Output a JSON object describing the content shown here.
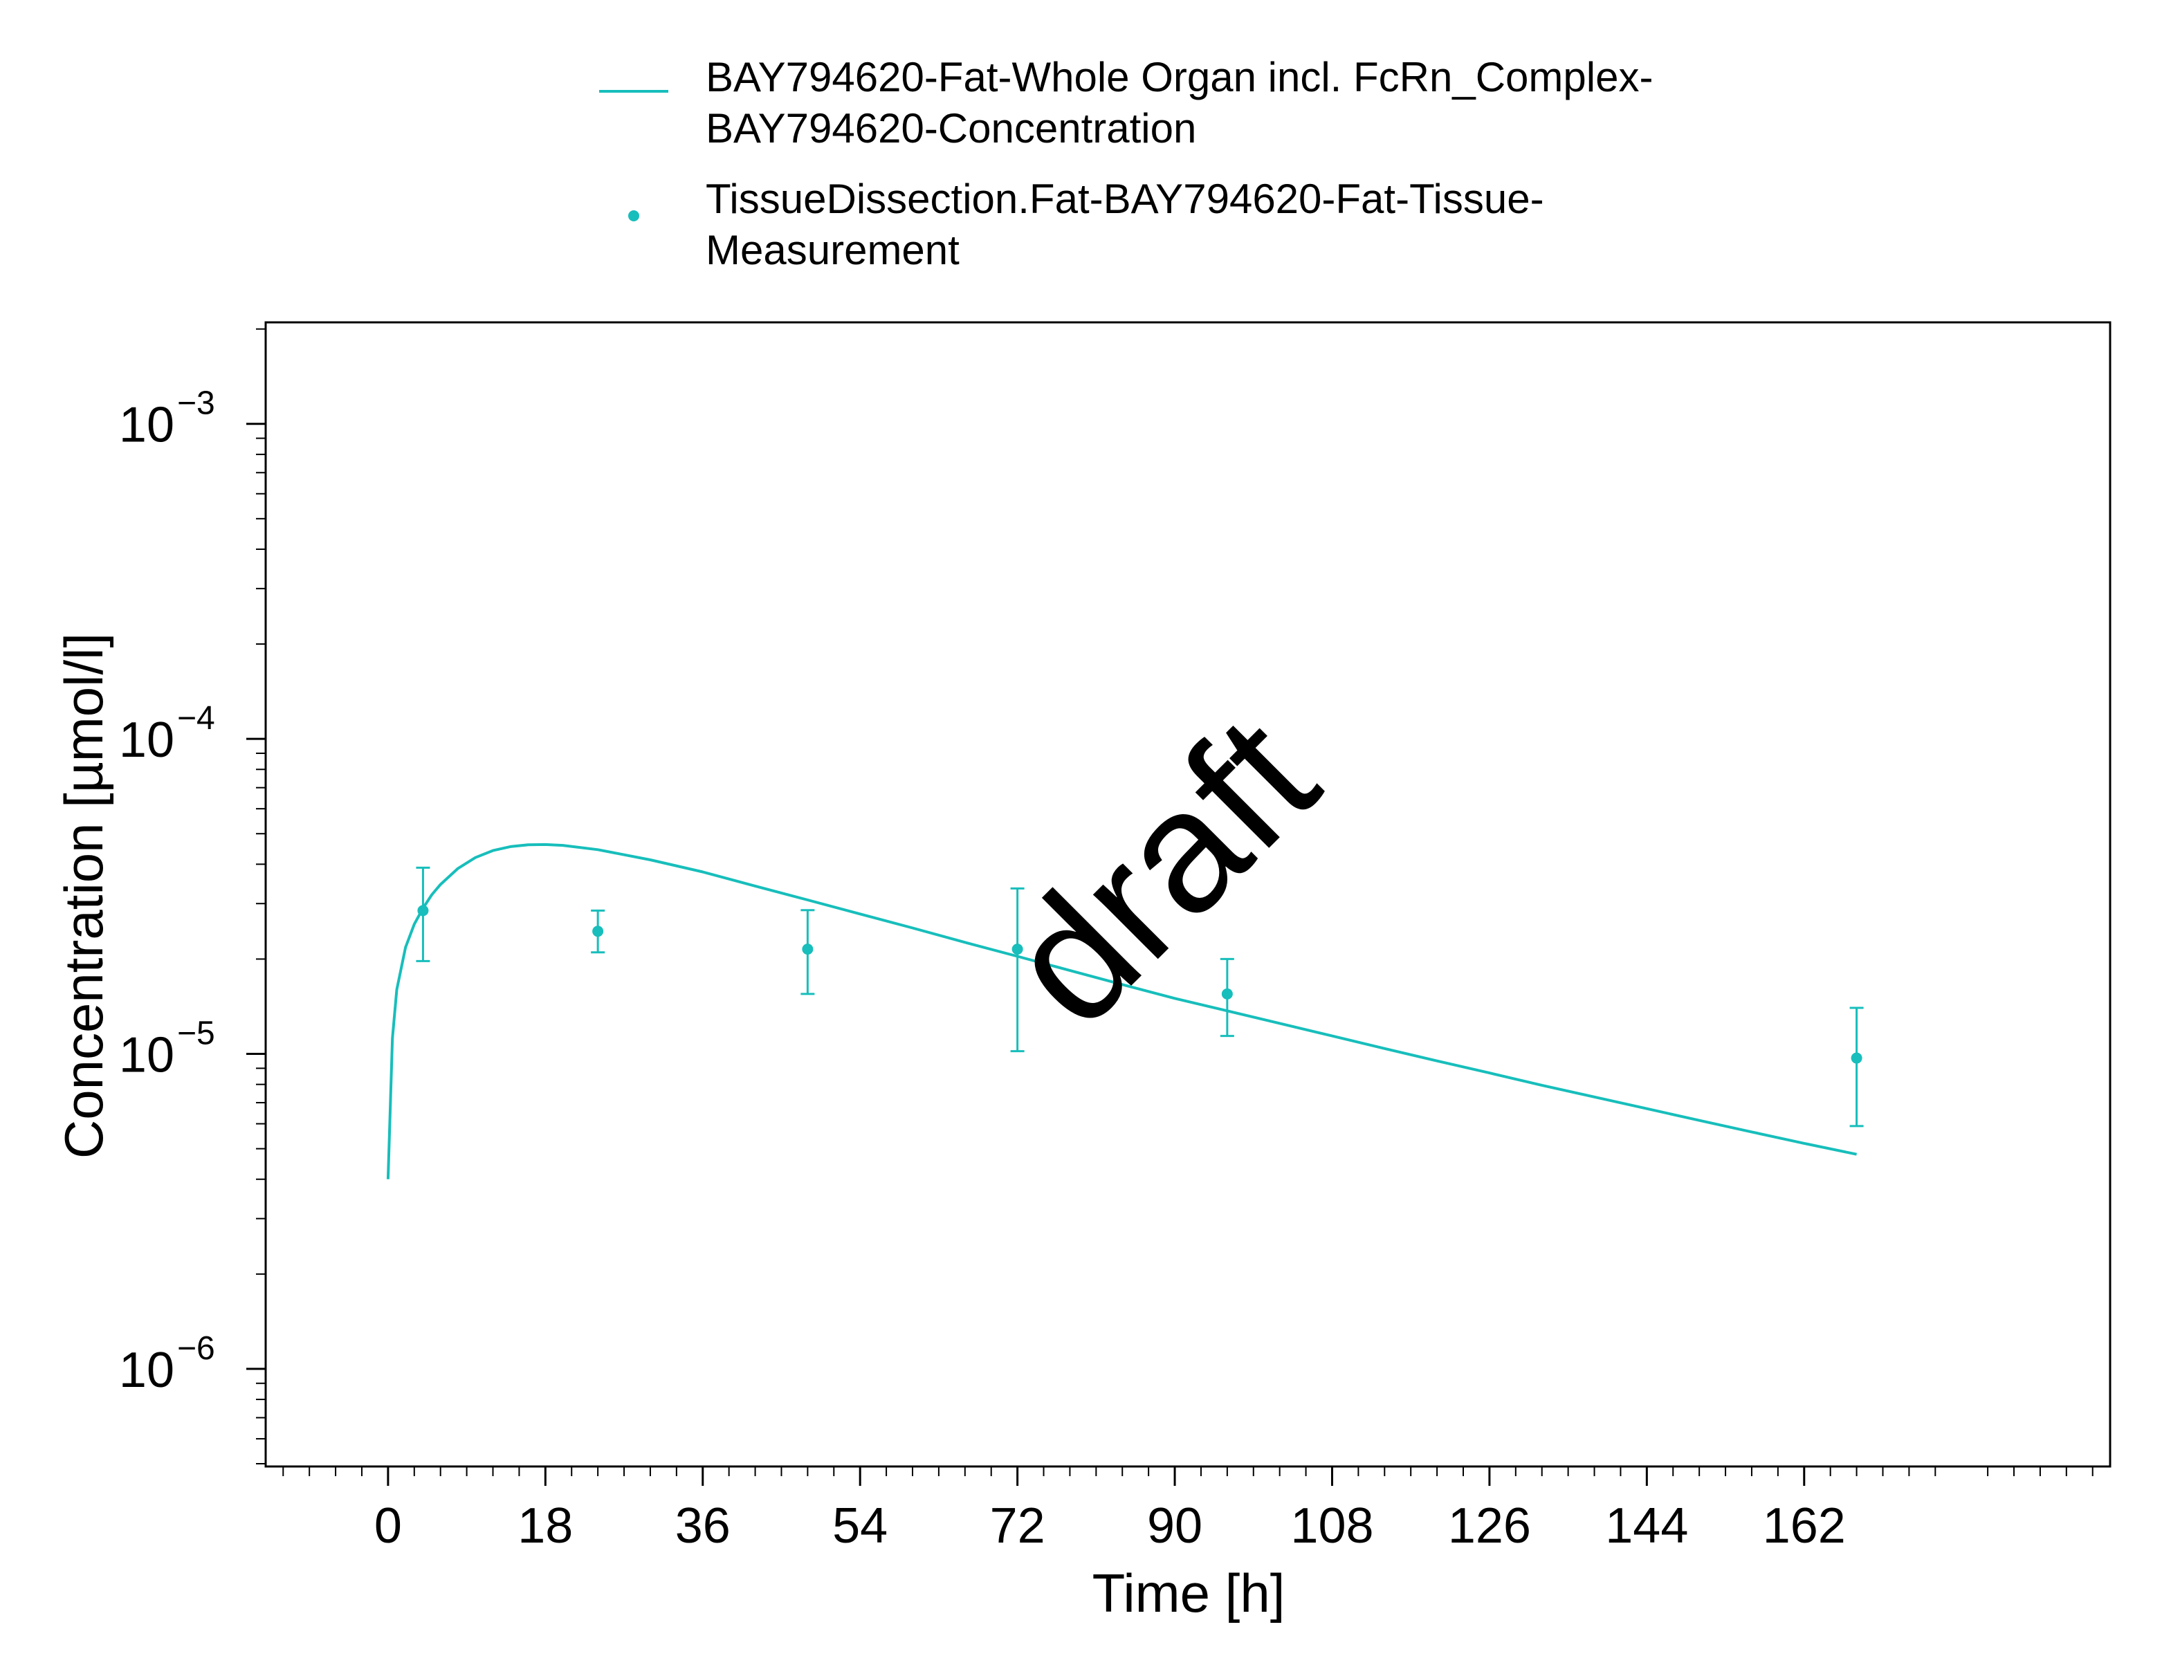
{
  "chart_data": {
    "type": "line",
    "xlabel": "Time [h]",
    "ylabel": "Concentration [µmol/l]",
    "x_scale": "linear",
    "y_scale": "log",
    "xlim": [
      -14,
      197
    ],
    "ylim": [
      4.9e-07,
      0.0021
    ],
    "x_ticks": [
      0,
      18,
      36,
      54,
      72,
      90,
      108,
      126,
      144,
      162
    ],
    "y_ticks": [
      1e-06,
      1e-05,
      0.0001,
      0.001
    ],
    "y_tick_labels": [
      {
        "base": "10",
        "exp": "−6"
      },
      {
        "base": "10",
        "exp": "−5"
      },
      {
        "base": "10",
        "exp": "−4"
      },
      {
        "base": "10",
        "exp": "−3"
      }
    ],
    "grid": false,
    "legend_position": "top",
    "watermark": "draft",
    "colors": {
      "series": "#17bebb",
      "axis": "#000000",
      "watermark": "#c8c8c8"
    },
    "series": [
      {
        "name": "BAY794620-Fat-Whole Organ incl. FcRn_Complex-BAY794620-Concentration",
        "legend_lines": [
          "BAY794620-Fat-Whole Organ incl. FcRn_Complex-",
          "BAY794620-Concentration"
        ],
        "type": "line",
        "x": [
          0,
          0.5,
          1,
          2,
          3,
          4,
          5,
          6,
          8,
          10,
          12,
          14,
          16,
          18,
          20,
          24,
          30,
          36,
          42,
          48,
          54,
          60,
          66,
          72,
          78,
          84,
          90,
          96,
          102,
          108,
          114,
          120,
          126,
          132,
          138,
          144,
          150,
          156,
          162,
          168
        ],
        "y": [
          4e-06,
          1.12e-05,
          1.6e-05,
          2.18e-05,
          2.58e-05,
          2.9e-05,
          3.2e-05,
          3.45e-05,
          3.88e-05,
          4.2e-05,
          4.42e-05,
          4.55e-05,
          4.61e-05,
          4.62e-05,
          4.59e-05,
          4.45e-05,
          4.13e-05,
          3.78e-05,
          3.41e-05,
          3.08e-05,
          2.78e-05,
          2.51e-05,
          2.26e-05,
          2.04e-05,
          1.84e-05,
          1.66e-05,
          1.5e-05,
          1.37e-05,
          1.25e-05,
          1.14e-05,
          1.04e-05,
          9.5e-06,
          8.7e-06,
          7.95e-06,
          7.3e-06,
          6.7e-06,
          6.15e-06,
          5.65e-06,
          5.2e-06,
          4.8e-06
        ]
      },
      {
        "name": "TissueDissection.Fat-BAY794620-Fat-Tissue-Measurement",
        "legend_lines": [
          "TissueDissection.Fat-BAY794620-Fat-Tissue-",
          "Measurement"
        ],
        "type": "scatter",
        "x": [
          4,
          24,
          48,
          72,
          96,
          168
        ],
        "y": [
          2.85e-05,
          2.45e-05,
          2.15e-05,
          2.15e-05,
          1.55e-05,
          9.7e-06
        ],
        "y_lower": [
          1.97e-05,
          2.1e-05,
          1.55e-05,
          1.02e-05,
          1.14e-05,
          5.9e-06
        ],
        "y_upper": [
          3.9e-05,
          2.85e-05,
          2.86e-05,
          3.35e-05,
          2e-05,
          1.4e-05
        ]
      }
    ]
  }
}
